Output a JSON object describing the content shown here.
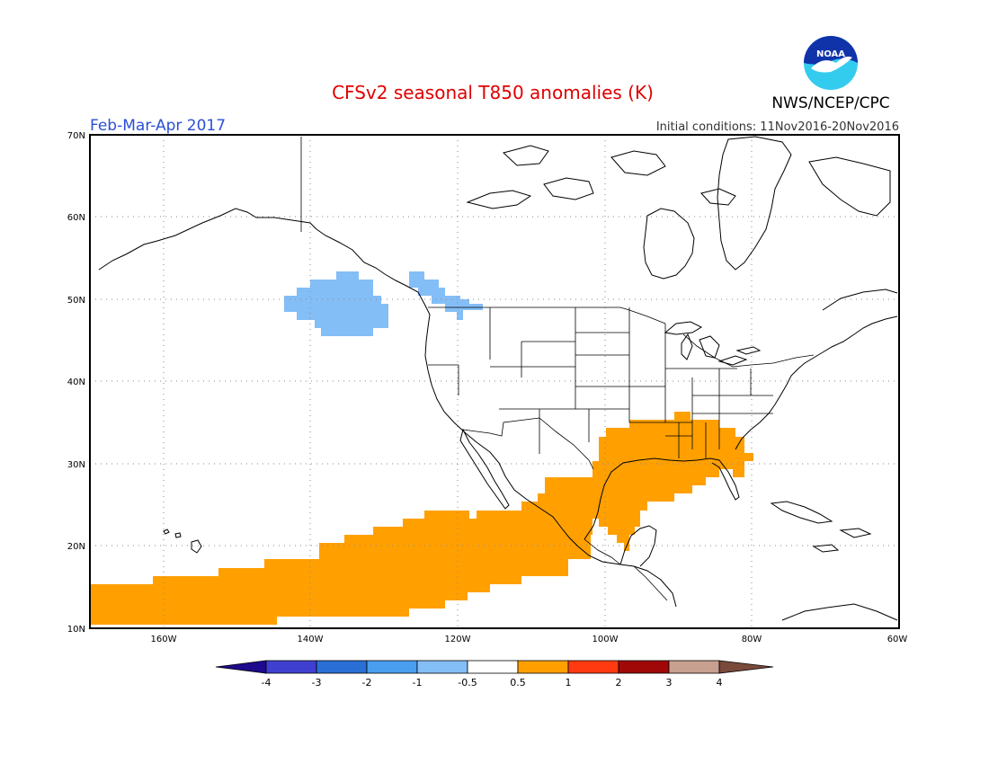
{
  "title": "CFSv2 seasonal T850 anomalies (K)",
  "period": "Feb-Mar-Apr 2017",
  "initial_conditions": "Initial conditions: 11Nov2016-20Nov2016",
  "agency": "NWS/NCEP/CPC",
  "logo": {
    "text": "NOAA",
    "colors": {
      "sky": "#1133aa",
      "sea": "#33ccee",
      "bird": "#ffffff"
    }
  },
  "axes": {
    "lat_labels": [
      "10N",
      "20N",
      "30N",
      "40N",
      "50N",
      "60N",
      "70N"
    ],
    "lon_labels": [
      "160W",
      "140W",
      "120W",
      "100W",
      "80W",
      "60W"
    ],
    "lat_range": [
      10,
      70
    ],
    "lon_range": [
      -170,
      -60
    ]
  },
  "colorbar": {
    "labels": [
      "-4",
      "-3",
      "-2",
      "-1",
      "-0.5",
      "0.5",
      "1",
      "2",
      "3",
      "4"
    ],
    "colors": [
      "#1e0a8c",
      "#4040d0",
      "#2a6fd6",
      "#4a9ef0",
      "#84bef6",
      "#ffffff",
      "#ffa000",
      "#ff3a10",
      "#a00808",
      "#c8a090",
      "#7a4a3a"
    ]
  },
  "anomaly_units": "K"
}
